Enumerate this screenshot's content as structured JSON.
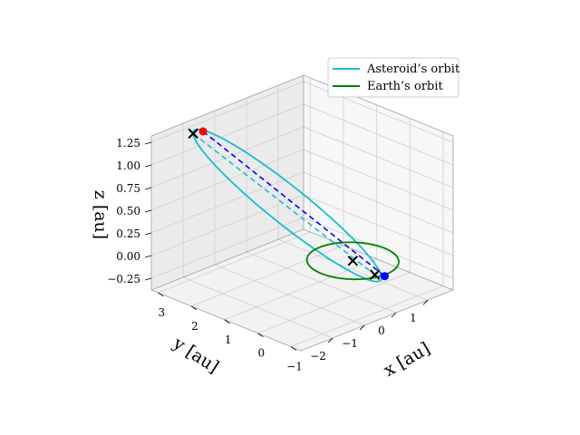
{
  "chart_data": {
    "type": "line",
    "projection": "3d",
    "title": "",
    "xlabel": "x [au]",
    "ylabel": "y [au]",
    "zlabel": "z [au]",
    "xlim": [
      -3.0,
      1.8
    ],
    "ylim": [
      -1.3,
      3.2
    ],
    "zlim": [
      -0.38,
      1.32
    ],
    "x_ticks": [
      "−2",
      "−1",
      "0",
      "1"
    ],
    "x_tick_values": [
      -2,
      -1,
      0,
      1
    ],
    "y_ticks": [
      "−1",
      "0",
      "1",
      "2",
      "3"
    ],
    "y_tick_values": [
      -1,
      0,
      1,
      2,
      3
    ],
    "z_ticks": [
      "−0.25",
      "0.00",
      "0.25",
      "0.50",
      "0.75",
      "1.00",
      "1.25"
    ],
    "z_tick_values": [
      -0.25,
      0.0,
      0.25,
      0.5,
      0.75,
      1.0,
      1.25
    ],
    "grid": true,
    "legend_position": "top-right",
    "series": [
      {
        "name": "Asteroid’s orbit",
        "color": "#17becf",
        "style": "solid",
        "shape": "ellipse",
        "center": [
          -0.65,
          1.35,
          0.5
        ],
        "semi_axis_major": [
          -1.45,
          1.45,
          0.78
        ],
        "semi_axis_minor": [
          0.95,
          0.95,
          0.0
        ]
      },
      {
        "name": "Earth’s orbit",
        "color": "#008000",
        "style": "solid",
        "shape": "circle",
        "center": [
          0.0,
          0.0,
          0.0
        ],
        "radius": 1.0
      }
    ],
    "lines": [
      {
        "color": "#17becf",
        "style": "dashed",
        "from": [
          -2.1,
          2.8,
          1.28
        ],
        "to": [
          0.8,
          0.1,
          -0.28
        ]
      },
      {
        "color": "#0000ff",
        "style": "dashed",
        "from": [
          -2.0,
          2.6,
          1.32
        ],
        "to": [
          0.9,
          -0.1,
          -0.28
        ]
      }
    ],
    "markers": [
      {
        "symbol": "x",
        "color": "#000000",
        "point": [
          -2.1,
          2.8,
          1.28
        ]
      },
      {
        "symbol": "x",
        "color": "#000000",
        "point": [
          0.0,
          0.0,
          0.0
        ]
      },
      {
        "symbol": "x",
        "color": "#000000",
        "point": [
          0.8,
          0.1,
          -0.28
        ]
      },
      {
        "symbol": "circle",
        "color": "#ff0000",
        "point": [
          -2.0,
          2.6,
          1.32
        ]
      },
      {
        "symbol": "circle",
        "color": "#0000ff",
        "point": [
          0.9,
          -0.1,
          -0.28
        ]
      }
    ]
  }
}
